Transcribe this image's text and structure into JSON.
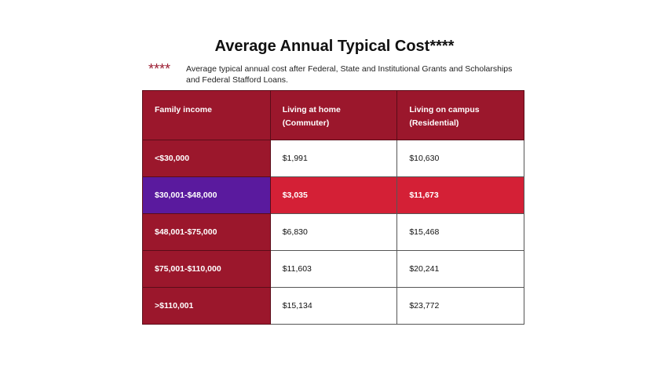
{
  "title": "Average Annual Typical Cost****",
  "note": {
    "stars": "****",
    "text": "Average typical annual cost after Federal, State and Institutional Grants and Scholarships and Federal Stafford Loans."
  },
  "colors": {
    "header": "#9b172c",
    "highlight_income": "#5a1a9e",
    "highlight_row": "#d42036"
  },
  "table": {
    "headers": [
      {
        "line1": "Family income",
        "line2": ""
      },
      {
        "line1": "Living at home",
        "line2": "(Commuter)"
      },
      {
        "line1": "Living on campus",
        "line2": "(Residential)"
      }
    ],
    "rows": [
      {
        "income": "<$30,000",
        "home": "$1,991",
        "campus": "$10,630"
      },
      {
        "income": "$30,001-$48,000",
        "home": "$3,035",
        "campus": "$11,673",
        "highlighted": true
      },
      {
        "income": "$48,001-$75,000",
        "home": "$6,830",
        "campus": "$15,468"
      },
      {
        "income": "$75,001-$110,000",
        "home": "$11,603",
        "campus": "$20,241"
      },
      {
        "income": ">$110,001",
        "home": "$15,134",
        "campus": "$23,772"
      }
    ]
  }
}
